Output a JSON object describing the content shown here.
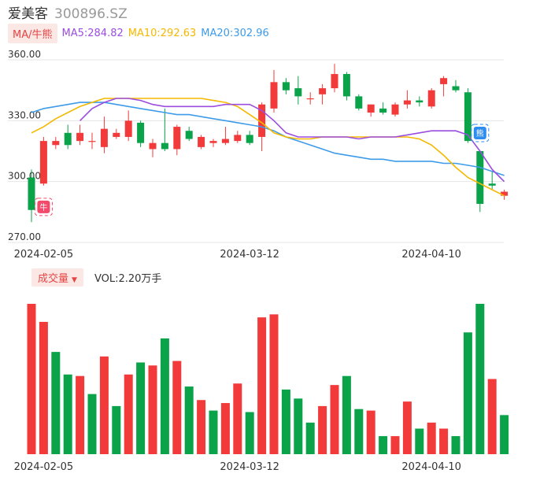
{
  "stock": {
    "name": "爱美客",
    "code": "300896.SZ"
  },
  "ma_legend": {
    "button_label": "MA/牛熊",
    "items": [
      {
        "label": "MA5:284.82",
        "color": "#9b4de0"
      },
      {
        "label": "MA10:292.63",
        "color": "#f5b800"
      },
      {
        "label": "MA20:302.96",
        "color": "#3d9be9"
      }
    ]
  },
  "volume_legend": {
    "button_label": "成交量",
    "value_label": "VOL:2.20万手"
  },
  "colors": {
    "up": "#f23a3a",
    "down": "#0aa34a",
    "grid": "#e6e6e6",
    "axis_text": "#333333"
  },
  "markers": {
    "bull": "牛",
    "bear": "熊"
  },
  "chart_data": [
    {
      "type": "candlestick",
      "y_ticks": [
        "360.00",
        "330.00",
        "300.00",
        "270.00"
      ],
      "ylim": [
        270,
        360
      ],
      "x_tick_labels": [
        {
          "label": "2024-02-05",
          "index": 1
        },
        {
          "label": "2024-03-12",
          "index": 18
        },
        {
          "label": "2024-04-10",
          "index": 33
        }
      ],
      "candles": [
        {
          "o": 302,
          "c": 286,
          "h": 306,
          "l": 280
        },
        {
          "o": 299,
          "c": 320,
          "h": 322,
          "l": 298
        },
        {
          "o": 318,
          "c": 320,
          "h": 322,
          "l": 316
        },
        {
          "o": 324,
          "c": 318,
          "h": 328,
          "l": 316
        },
        {
          "o": 320,
          "c": 324,
          "h": 328,
          "l": 318
        },
        {
          "o": 320,
          "c": 320,
          "h": 324,
          "l": 316
        },
        {
          "o": 317,
          "c": 326,
          "h": 332,
          "l": 314
        },
        {
          "o": 322,
          "c": 324,
          "h": 326,
          "l": 321
        },
        {
          "o": 322,
          "c": 330,
          "h": 335,
          "l": 320
        },
        {
          "o": 329,
          "c": 319,
          "h": 330,
          "l": 317
        },
        {
          "o": 316,
          "c": 319,
          "h": 321,
          "l": 312
        },
        {
          "o": 319,
          "c": 316,
          "h": 336,
          "l": 315
        },
        {
          "o": 316,
          "c": 327,
          "h": 328,
          "l": 313
        },
        {
          "o": 325,
          "c": 321,
          "h": 327,
          "l": 320
        },
        {
          "o": 317,
          "c": 322,
          "h": 323,
          "l": 316
        },
        {
          "o": 319,
          "c": 320,
          "h": 321,
          "l": 317
        },
        {
          "o": 319,
          "c": 321,
          "h": 327,
          "l": 318
        },
        {
          "o": 320,
          "c": 323,
          "h": 325,
          "l": 319
        },
        {
          "o": 323,
          "c": 319,
          "h": 325,
          "l": 318
        },
        {
          "o": 322,
          "c": 338,
          "h": 339,
          "l": 315
        },
        {
          "o": 336,
          "c": 349,
          "h": 355,
          "l": 334
        },
        {
          "o": 349,
          "c": 345,
          "h": 351,
          "l": 343
        },
        {
          "o": 346,
          "c": 342,
          "h": 352,
          "l": 338
        },
        {
          "o": 341,
          "c": 341,
          "h": 344,
          "l": 338
        },
        {
          "o": 343,
          "c": 346,
          "h": 348,
          "l": 338
        },
        {
          "o": 346,
          "c": 353,
          "h": 358,
          "l": 344
        },
        {
          "o": 353,
          "c": 342,
          "h": 354,
          "l": 340
        },
        {
          "o": 342,
          "c": 336,
          "h": 343,
          "l": 335
        },
        {
          "o": 334,
          "c": 338,
          "h": 338,
          "l": 332
        },
        {
          "o": 336,
          "c": 334,
          "h": 339,
          "l": 333
        },
        {
          "o": 333,
          "c": 338,
          "h": 339,
          "l": 332
        },
        {
          "o": 338,
          "c": 340,
          "h": 345,
          "l": 336
        },
        {
          "o": 340,
          "c": 339,
          "h": 342,
          "l": 337
        },
        {
          "o": 337,
          "c": 345,
          "h": 346,
          "l": 336
        },
        {
          "o": 348,
          "c": 351,
          "h": 352,
          "l": 342
        },
        {
          "o": 347,
          "c": 345,
          "h": 350,
          "l": 344
        },
        {
          "o": 344,
          "c": 320,
          "h": 346,
          "l": 319
        },
        {
          "o": 315,
          "c": 289,
          "h": 315,
          "l": 285
        },
        {
          "o": 299,
          "c": 298,
          "h": 305,
          "l": 296
        },
        {
          "o": 293,
          "c": 295,
          "h": 296,
          "l": 291
        }
      ],
      "ma5": [
        null,
        null,
        null,
        null,
        330,
        336,
        339,
        341,
        341,
        340,
        338,
        337,
        337,
        337,
        337,
        337,
        338,
        338,
        338,
        335,
        330,
        324,
        322,
        322,
        322,
        322,
        322,
        321,
        322,
        322,
        322,
        323,
        324,
        325,
        325,
        325,
        323,
        315,
        306,
        300
      ],
      "ma10": [
        324,
        327,
        331,
        334,
        337,
        339,
        341,
        341,
        341,
        341,
        341,
        341,
        341,
        341,
        341,
        340,
        339,
        337,
        333,
        329,
        324,
        322,
        321,
        321,
        322,
        322,
        322,
        322,
        322,
        322,
        322,
        322,
        321,
        318,
        313,
        307,
        302,
        299,
        296,
        293
      ],
      "ma20": [
        334,
        336,
        337,
        338,
        339,
        339,
        339,
        338,
        337,
        336,
        335,
        334,
        333,
        333,
        332,
        331,
        330,
        329,
        328,
        327,
        325,
        322,
        320,
        318,
        316,
        314,
        313,
        312,
        311,
        311,
        310,
        310,
        310,
        310,
        309,
        309,
        308,
        307,
        305,
        303
      ],
      "bull_marker_index": 1,
      "bear_marker_index": 37,
      "volume": {
        "values": [
          100,
          88,
          68,
          53,
          52,
          40,
          65,
          32,
          53,
          61,
          59,
          77,
          62,
          45,
          36,
          29,
          34,
          47,
          28,
          91,
          93,
          43,
          37,
          21,
          32,
          46,
          52,
          30,
          29,
          12,
          12,
          35,
          17,
          21,
          17,
          12,
          81,
          100,
          50,
          26
        ],
        "colors": [
          "up",
          "up",
          "down",
          "down",
          "up",
          "down",
          "up",
          "down",
          "up",
          "down",
          "up",
          "down",
          "up",
          "down",
          "up",
          "down",
          "up",
          "up",
          "down",
          "up",
          "up",
          "down",
          "down",
          "down",
          "up",
          "up",
          "down",
          "down",
          "up",
          "down",
          "up",
          "up",
          "down",
          "up",
          "up",
          "down",
          "down",
          "down",
          "up",
          "down"
        ]
      }
    }
  ]
}
